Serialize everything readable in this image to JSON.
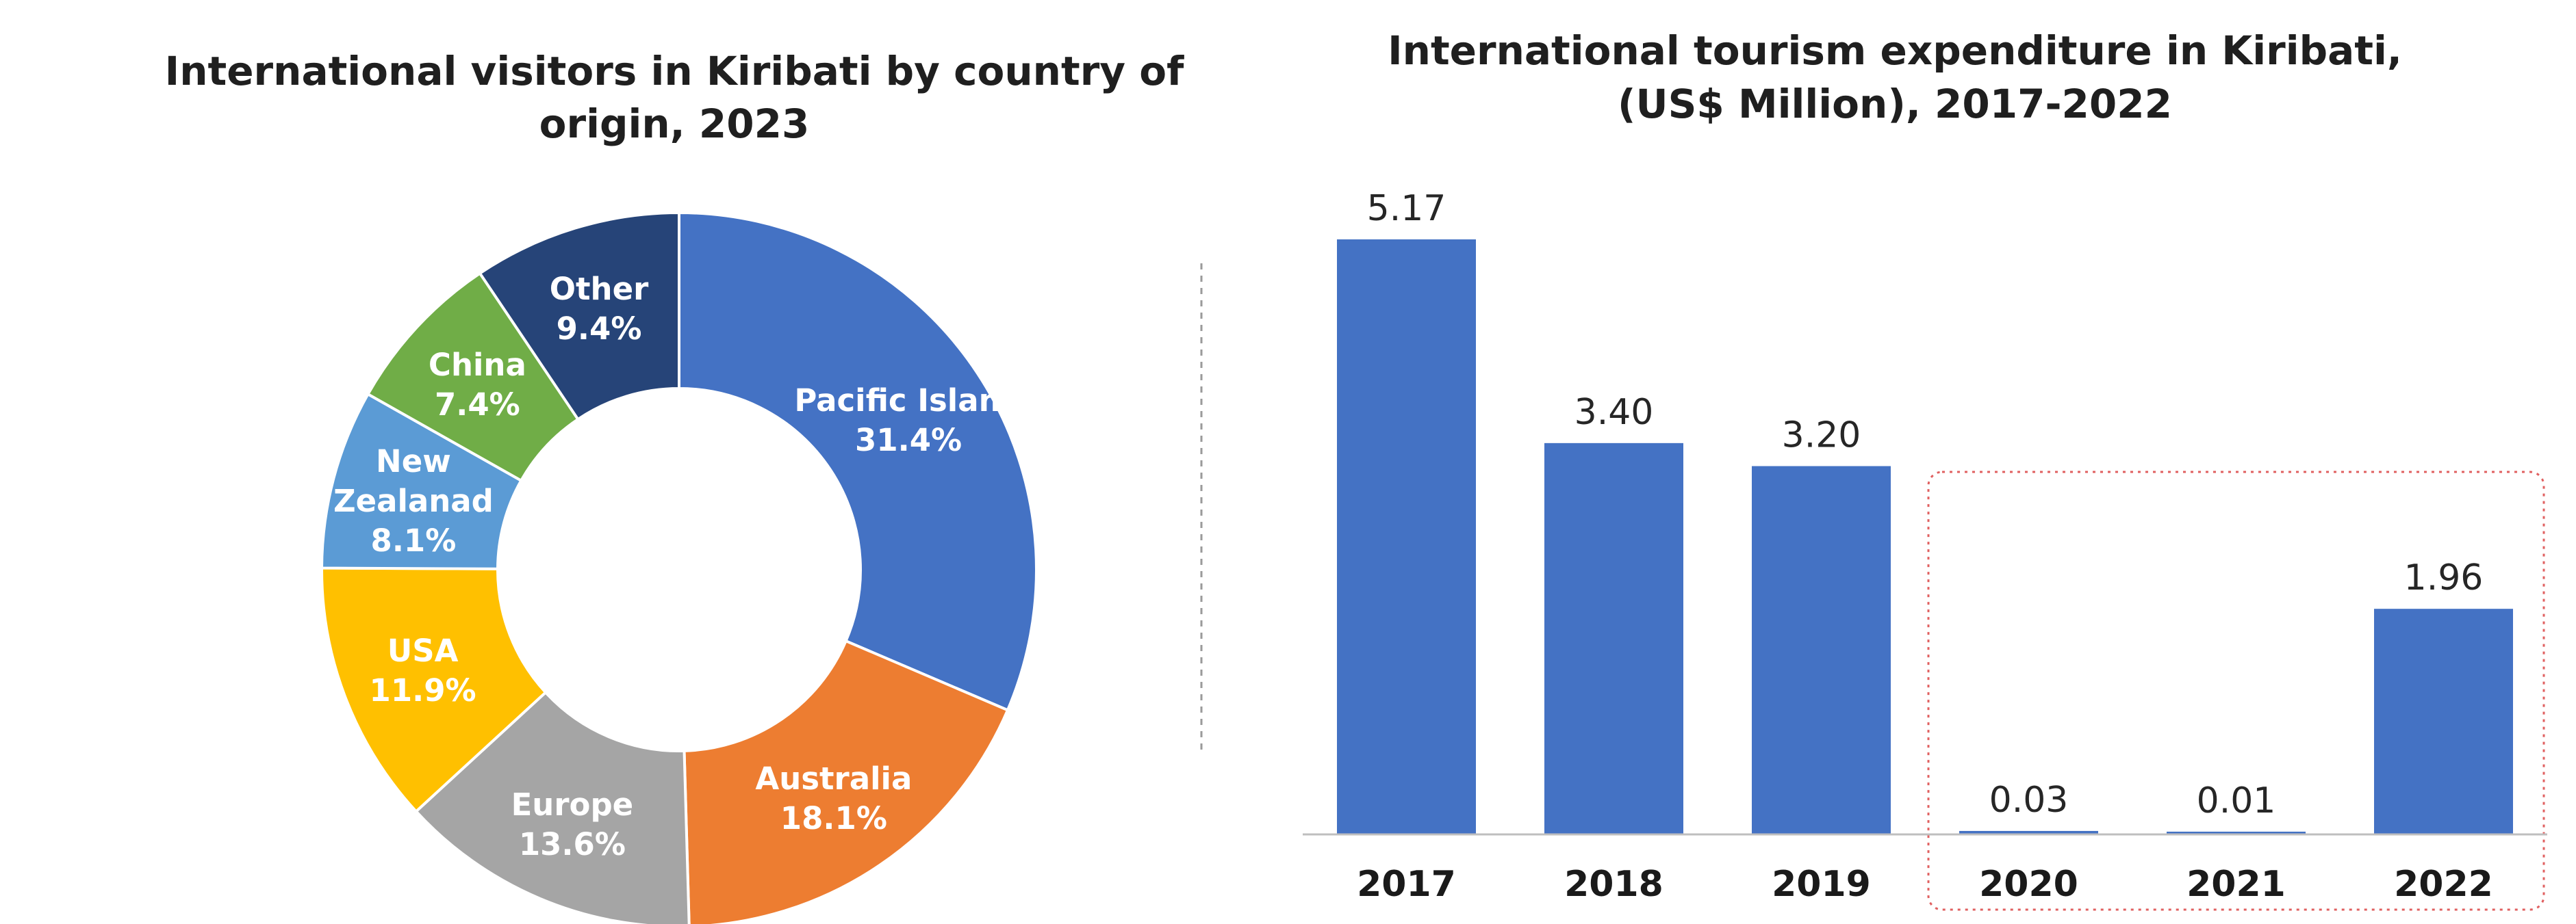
{
  "chart_data": [
    {
      "type": "pie",
      "title_lines": [
        "International visitors in Kiribati by country of",
        "origin, 2023"
      ],
      "unit": "%",
      "slices": [
        {
          "name": "Pacific Island",
          "value": 31.4,
          "value_label": "31.4%",
          "color": "#4472C4"
        },
        {
          "name": "Australia",
          "value": 18.1,
          "value_label": "18.1%",
          "color": "#ED7D31"
        },
        {
          "name": "Europe",
          "value": 13.6,
          "value_label": "13.6%",
          "color": "#A5A5A5"
        },
        {
          "name": "USA",
          "value": 11.9,
          "value_label": "11.9%",
          "color": "#FFC000"
        },
        {
          "name": "New Zealanad",
          "name_lines": [
            "New",
            "Zealanad"
          ],
          "value": 8.1,
          "value_label": "8.1%",
          "color": "#5B9BD5"
        },
        {
          "name": "China",
          "value": 7.4,
          "value_label": "7.4%",
          "color": "#70AD47"
        },
        {
          "name": "Other",
          "value": 9.4,
          "value_label": "9.4%",
          "color": "#264478"
        }
      ]
    },
    {
      "type": "bar",
      "title_lines": [
        "International tourism expenditure in Kiribati,",
        "(US$ Million), 2017-2022"
      ],
      "categories": [
        "2017",
        "2018",
        "2019",
        "2020",
        "2021",
        "2022"
      ],
      "values": [
        5.17,
        3.4,
        3.2,
        0.03,
        0.01,
        1.96
      ],
      "value_labels": [
        "5.17",
        "3.40",
        "3.20",
        "0.03",
        "0.01",
        "1.96"
      ],
      "ylim": [
        0,
        5.17
      ],
      "bar_color": "#4472C4",
      "highlight": {
        "categories": [
          "2020",
          "2021",
          "2022"
        ],
        "color": "#E06060",
        "style": "dotted"
      },
      "grid": false
    }
  ]
}
